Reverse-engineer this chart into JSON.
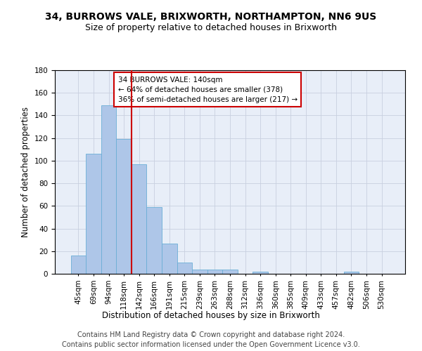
{
  "title1": "34, BURROWS VALE, BRIXWORTH, NORTHAMPTON, NN6 9US",
  "title2": "Size of property relative to detached houses in Brixworth",
  "xlabel": "Distribution of detached houses by size in Brixworth",
  "ylabel": "Number of detached properties",
  "categories": [
    "45sqm",
    "69sqm",
    "94sqm",
    "118sqm",
    "142sqm",
    "166sqm",
    "191sqm",
    "215sqm",
    "239sqm",
    "263sqm",
    "288sqm",
    "312sqm",
    "336sqm",
    "360sqm",
    "385sqm",
    "409sqm",
    "433sqm",
    "457sqm",
    "482sqm",
    "506sqm",
    "530sqm"
  ],
  "values": [
    16,
    106,
    149,
    119,
    97,
    59,
    27,
    10,
    4,
    4,
    4,
    0,
    2,
    0,
    0,
    0,
    0,
    0,
    2,
    0,
    0
  ],
  "bar_color": "#aec6e8",
  "bar_edge_color": "#6baed6",
  "vline_index": 4,
  "vline_color": "#cc0000",
  "annotation_text": "34 BURROWS VALE: 140sqm\n← 64% of detached houses are smaller (378)\n36% of semi-detached houses are larger (217) →",
  "annotation_box_color": "#ffffff",
  "annotation_box_edge": "#cc0000",
  "ylim": [
    0,
    180
  ],
  "yticks": [
    0,
    20,
    40,
    60,
    80,
    100,
    120,
    140,
    160,
    180
  ],
  "grid_color": "#c8d0e0",
  "background_color": "#e8eef8",
  "footer1": "Contains HM Land Registry data © Crown copyright and database right 2024.",
  "footer2": "Contains public sector information licensed under the Open Government Licence v3.0.",
  "title_fontsize": 10,
  "subtitle_fontsize": 9,
  "axis_label_fontsize": 8.5,
  "tick_fontsize": 7.5,
  "footer_fontsize": 7
}
